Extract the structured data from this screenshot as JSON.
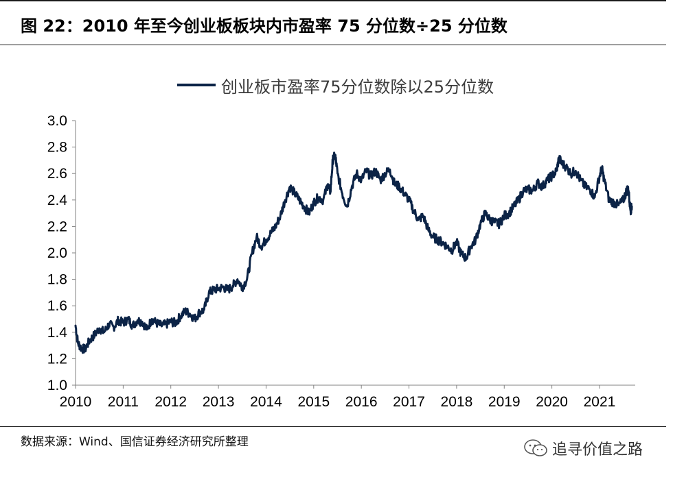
{
  "figure": {
    "title": "图 22：2010 年至今创业板板块内市盈率 75 分位数÷25 分位数",
    "source": "数据来源：Wind、国信证券经济研究所整理",
    "watermark": "追寻价值之路",
    "watermark_icon": "wechat-icon"
  },
  "colors": {
    "series": "#0b2346",
    "axis": "#808080",
    "text": "#000000"
  },
  "chart_data": {
    "type": "line",
    "title": "",
    "xlabel": "",
    "ylabel": "",
    "legend_position": "top-center",
    "grid": false,
    "ylim": [
      1.0,
      3.0
    ],
    "y_ticks": [
      "1.0",
      "1.2",
      "1.4",
      "1.6",
      "1.8",
      "2.0",
      "2.2",
      "2.4",
      "2.6",
      "2.8",
      "3.0"
    ],
    "x_ticks": [
      "2010",
      "2011",
      "2012",
      "2013",
      "2014",
      "2015",
      "2016",
      "2017",
      "2018",
      "2019",
      "2020",
      "2021"
    ],
    "series": [
      {
        "name": "创业板市盈率75分位数除以25分位数",
        "x": [
          2010.0,
          2010.05,
          2010.12,
          2010.2,
          2010.3,
          2010.4,
          2010.5,
          2010.6,
          2010.7,
          2010.8,
          2010.9,
          2011.0,
          2011.1,
          2011.2,
          2011.3,
          2011.4,
          2011.5,
          2011.6,
          2011.7,
          2011.8,
          2011.9,
          2012.0,
          2012.1,
          2012.2,
          2012.3,
          2012.4,
          2012.5,
          2012.6,
          2012.7,
          2012.8,
          2012.9,
          2013.0,
          2013.1,
          2013.2,
          2013.3,
          2013.4,
          2013.5,
          2013.6,
          2013.7,
          2013.8,
          2013.9,
          2014.0,
          2014.1,
          2014.2,
          2014.3,
          2014.4,
          2014.5,
          2014.6,
          2014.7,
          2014.8,
          2014.9,
          2015.0,
          2015.1,
          2015.2,
          2015.3,
          2015.35,
          2015.4,
          2015.45,
          2015.5,
          2015.6,
          2015.7,
          2015.8,
          2015.9,
          2016.0,
          2016.1,
          2016.2,
          2016.3,
          2016.4,
          2016.5,
          2016.6,
          2016.7,
          2016.8,
          2016.9,
          2017.0,
          2017.1,
          2017.2,
          2017.3,
          2017.4,
          2017.5,
          2017.6,
          2017.7,
          2017.8,
          2017.9,
          2018.0,
          2018.1,
          2018.2,
          2018.3,
          2018.4,
          2018.5,
          2018.6,
          2018.7,
          2018.8,
          2018.9,
          2019.0,
          2019.1,
          2019.2,
          2019.3,
          2019.4,
          2019.5,
          2019.6,
          2019.7,
          2019.8,
          2019.9,
          2020.0,
          2020.1,
          2020.15,
          2020.2,
          2020.3,
          2020.4,
          2020.5,
          2020.6,
          2020.7,
          2020.8,
          2020.9,
          2021.0,
          2021.05,
          2021.1,
          2021.2,
          2021.3,
          2021.4,
          2021.5,
          2021.55,
          2021.6,
          2021.65,
          2021.68
        ],
        "y": [
          1.45,
          1.32,
          1.28,
          1.27,
          1.34,
          1.38,
          1.43,
          1.4,
          1.46,
          1.44,
          1.49,
          1.47,
          1.5,
          1.45,
          1.49,
          1.48,
          1.42,
          1.5,
          1.47,
          1.45,
          1.46,
          1.48,
          1.47,
          1.52,
          1.56,
          1.54,
          1.5,
          1.55,
          1.57,
          1.7,
          1.72,
          1.73,
          1.74,
          1.72,
          1.75,
          1.8,
          1.74,
          1.8,
          1.99,
          2.12,
          2.05,
          2.1,
          2.15,
          2.2,
          2.28,
          2.4,
          2.5,
          2.45,
          2.4,
          2.35,
          2.3,
          2.38,
          2.42,
          2.4,
          2.52,
          2.46,
          2.7,
          2.74,
          2.6,
          2.45,
          2.35,
          2.5,
          2.6,
          2.55,
          2.62,
          2.58,
          2.62,
          2.55,
          2.6,
          2.63,
          2.52,
          2.5,
          2.45,
          2.4,
          2.32,
          2.25,
          2.28,
          2.18,
          2.12,
          2.1,
          2.08,
          2.05,
          2.02,
          2.08,
          1.99,
          1.96,
          2.05,
          2.1,
          2.22,
          2.3,
          2.25,
          2.23,
          2.22,
          2.28,
          2.3,
          2.35,
          2.4,
          2.47,
          2.48,
          2.47,
          2.53,
          2.5,
          2.55,
          2.58,
          2.62,
          2.72,
          2.68,
          2.65,
          2.6,
          2.62,
          2.55,
          2.5,
          2.48,
          2.42,
          2.58,
          2.64,
          2.55,
          2.4,
          2.38,
          2.36,
          2.4,
          2.45,
          2.5,
          2.32,
          2.35
        ]
      }
    ]
  }
}
